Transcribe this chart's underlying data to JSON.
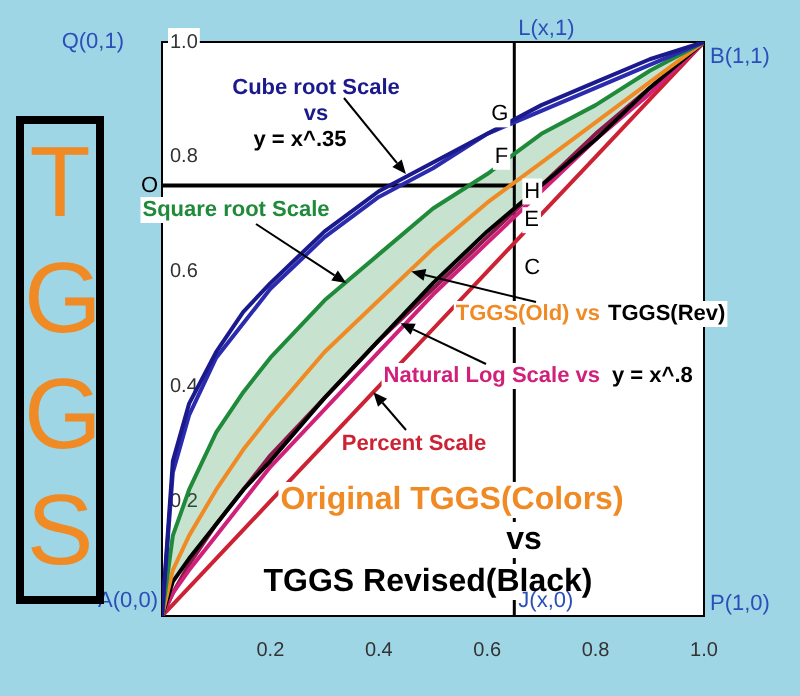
{
  "chart_data": {
    "type": "line",
    "x": [
      0,
      0.02,
      0.05,
      0.1,
      0.15,
      0.2,
      0.3,
      0.4,
      0.5,
      0.6,
      0.7,
      0.8,
      0.9,
      1.0
    ],
    "series": [
      {
        "color": "#1a1a8c",
        "values": [
          0,
          0.27,
          0.37,
          0.46,
          0.53,
          0.58,
          0.67,
          0.74,
          0.79,
          0.84,
          0.89,
          0.93,
          0.97,
          1
        ]
      },
      {
        "color": "#2b2bb0",
        "values": [
          0,
          0.25,
          0.35,
          0.45,
          0.51,
          0.57,
          0.66,
          0.73,
          0.78,
          0.84,
          0.88,
          0.92,
          0.96,
          1
        ]
      },
      {
        "color": "#1f8a3a",
        "values": [
          0,
          0.14,
          0.22,
          0.32,
          0.39,
          0.45,
          0.55,
          0.63,
          0.71,
          0.77,
          0.84,
          0.89,
          0.95,
          1
        ],
        "lower": [
          0,
          0.06,
          0.1,
          0.16,
          0.22,
          0.27,
          0.38,
          0.48,
          0.58,
          0.67,
          0.75,
          0.83,
          0.92,
          1
        ],
        "upper": [
          0,
          0.14,
          0.22,
          0.32,
          0.39,
          0.45,
          0.55,
          0.63,
          0.71,
          0.77,
          0.84,
          0.89,
          0.95,
          1
        ]
      },
      {
        "color": "#f08a24",
        "values": [
          0,
          0.08,
          0.14,
          0.22,
          0.29,
          0.35,
          0.46,
          0.55,
          0.64,
          0.72,
          0.79,
          0.86,
          0.93,
          1
        ]
      },
      {
        "color": "#000000",
        "values": [
          0,
          0.06,
          0.1,
          0.16,
          0.22,
          0.27,
          0.38,
          0.48,
          0.58,
          0.67,
          0.75,
          0.83,
          0.92,
          1
        ]
      },
      {
        "color": "#d0207a",
        "values": [
          0,
          0.04,
          0.08,
          0.14,
          0.2,
          0.26,
          0.36,
          0.46,
          0.56,
          0.65,
          0.74,
          0.83,
          0.91,
          1
        ]
      },
      {
        "color": "#8b1a4a",
        "values": [
          0,
          0.04,
          0.09,
          0.16,
          0.22,
          0.28,
          0.38,
          0.48,
          0.57,
          0.66,
          0.75,
          0.84,
          0.92,
          1
        ]
      },
      {
        "color": "#cc2233",
        "values": [
          0,
          0.02,
          0.05,
          0.1,
          0.15,
          0.2,
          0.3,
          0.4,
          0.5,
          0.6,
          0.7,
          0.8,
          0.9,
          1
        ]
      },
      {
        "color": "#000000",
        "x": [
          0,
          0.65
        ],
        "values": [
          0.75,
          0.75
        ]
      }
    ],
    "ref_lines": [
      {
        "axis": "x",
        "value": 0.65,
        "color": "#000000"
      }
    ],
    "xlim": [
      0,
      1
    ],
    "ylim": [
      0,
      1
    ],
    "xticks": [
      0.2,
      0.4,
      0.6,
      0.8,
      {
        "value": 1,
        "label": "1.0"
      }
    ],
    "yticks": [
      0.2,
      0.4,
      0.6,
      0.8,
      {
        "value": 1,
        "label": "1.0"
      }
    ],
    "grid": false,
    "legend": false,
    "marker": "none",
    "line_style": "solid",
    "annotations": [
      "TGGS",
      {
        "text": "Cube root Scale",
        "x": 0.45,
        "y": 0.77
      },
      "vs",
      "y = x^.35",
      {
        "text": "Square root Scale",
        "x": 0.34,
        "y": 0.58
      },
      {
        "text": "TGGS(Old) vs",
        "x": 0.46,
        "y": 0.6
      },
      "TGGS(Rev)",
      {
        "text": "Natural Log Scale vs",
        "x": 0.44,
        "y": 0.51
      },
      "y = x^.8",
      {
        "text": "Percent Scale",
        "x": 0.39,
        "y": 0.39
      },
      "Original TGGS(Colors)",
      "vs",
      "TGGS Revised(Black)",
      "Q(0,1)",
      {
        "text": "O",
        "x": 0,
        "y": 0.75
      },
      {
        "text": "L(x,1)",
        "x": 0.65,
        "y": 1
      },
      {
        "text": "B(1,1)",
        "x": 1,
        "y": 1
      },
      {
        "text": "G",
        "x": 0.65,
        "y": 0.86
      },
      {
        "text": "F",
        "x": 0.65,
        "y": 0.8
      },
      {
        "text": "H",
        "x": 0.65,
        "y": 0.75
      },
      {
        "text": "E",
        "x": 0.65,
        "y": 0.7
      },
      {
        "text": "C",
        "x": 0.65,
        "y": 0.62
      },
      {
        "text": "A(0,0)",
        "x": 0,
        "y": 0
      },
      {
        "text": "J(x,0)",
        "x": 0.65,
        "y": 0
      },
      "P(1,0)"
    ]
  }
}
